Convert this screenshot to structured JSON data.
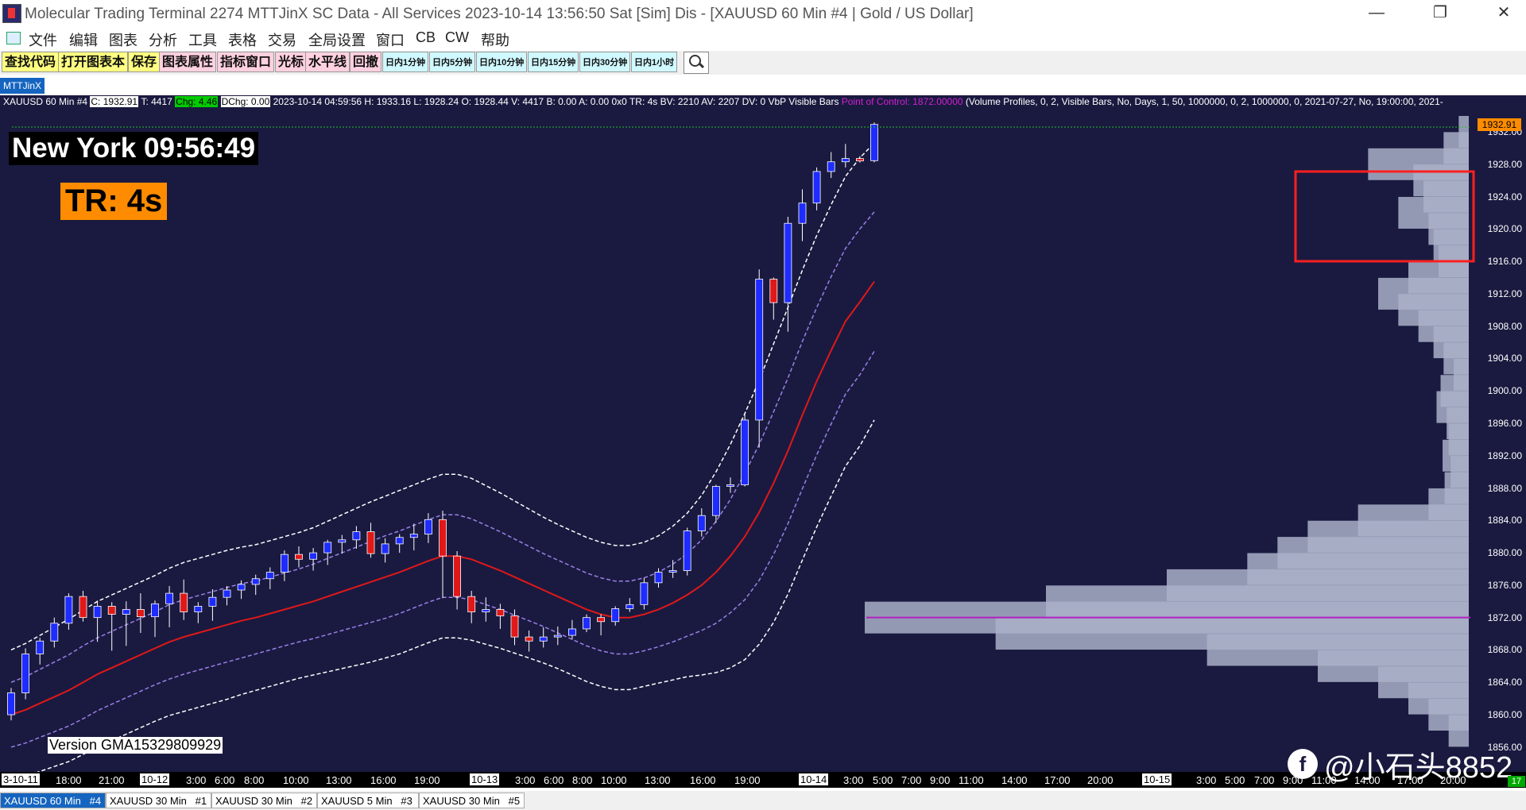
{
  "window": {
    "title": "Molecular Trading Terminal 2274 MTTJinX  SC Data - All Services 2023-10-14  13:56:50 Sat [Sim]  Dis - [XAUUSD  60 Min   #4 | Gold / US Dollar]",
    "minimize": "—",
    "restore": "❐",
    "close": "✕"
  },
  "menu": [
    "文件",
    "编辑",
    "图表",
    "分析",
    "工具",
    "表格",
    "交易",
    "全局设置",
    "窗口",
    "CB",
    "CW",
    "帮助"
  ],
  "mdi_buttons": [
    "–",
    "▫",
    "✕"
  ],
  "toolbar": [
    {
      "label": "查找代码",
      "color": "#ffff80"
    },
    {
      "label": "打开图表本",
      "color": "#ffff80"
    },
    {
      "label": "保存",
      "color": "#ffff80"
    },
    {
      "label": "图表属性",
      "color": "#ffd0e0"
    },
    {
      "label": "指标窗口",
      "color": "#ffd0e0"
    },
    {
      "label": "光标",
      "color": "#ffd0e0"
    },
    {
      "label": "水平线",
      "color": "#ffd0e0"
    },
    {
      "label": "回撤",
      "color": "#ffd0e0"
    }
  ],
  "toolbar_small": [
    "日内1分钟",
    "日内5分钟",
    "日内10分钟",
    "日内15分钟",
    "日内30分钟",
    "日内1小时"
  ],
  "chartset_tab": "MTTJinX",
  "info": {
    "symbol": "XAUUSD  60 Min   #4",
    "close": "C: 1932.91",
    "ticks": "T: 4417",
    "chg": "Chg: 4.46",
    "dchg": "DChg: 0.00",
    "bar": "2023-10-14 04:59:56 H: 1933.16 L: 1928.24 O: 1928.44 V: 4417 B: 0.00 A: 0.00 0x0 TR: 4s BV: 2210 AV: 2207 DV: 0 VbP Visible Bars",
    "poc": "Point of Control: 1872.00000",
    "study": "(Volume Profiles, 0, 2, Visible Bars, No, Days, 1, 50, 1000000, 0, 2, 1000000, 0, 2021-07-27, No, 19:00:00, 2021-"
  },
  "clock": "New York 09:56:49",
  "tr": "TR: 4s",
  "version": "Version GMA15329809929",
  "watermark": "@小石头8852",
  "watermark_icon": "f",
  "colors": {
    "up": "#1e2cff",
    "down": "#e01818",
    "mid": "#e01818",
    "inner": "#9a80e8",
    "outer": "#ffffff",
    "poc": "#b020c0",
    "profile": "#aab0c8",
    "highlight": "#ff2020"
  },
  "time_axis": [
    {
      "label": "3-10-11",
      "box": true
    },
    {
      "label": "18:00"
    },
    {
      "label": "21:00"
    },
    {
      "label": "10-12",
      "box": true
    },
    {
      "label": "3:00"
    },
    {
      "label": "6:00"
    },
    {
      "label": "8:00"
    },
    {
      "label": "10:00"
    },
    {
      "label": "13:00"
    },
    {
      "label": "16:00"
    },
    {
      "label": "19:00"
    },
    {
      "label": "10-13",
      "box": true
    },
    {
      "label": "3:00"
    },
    {
      "label": "6:00"
    },
    {
      "label": "8:00"
    },
    {
      "label": "10:00"
    },
    {
      "label": "13:00"
    },
    {
      "label": "16:00"
    },
    {
      "label": "19:00"
    },
    {
      "label": "10-14",
      "box": true
    },
    {
      "label": "3:00"
    },
    {
      "label": "5:00"
    },
    {
      "label": "7:00"
    },
    {
      "label": "9:00"
    },
    {
      "label": "11:00"
    },
    {
      "label": "14:00"
    },
    {
      "label": "17:00"
    },
    {
      "label": "20:00"
    },
    {
      "label": "10-15",
      "box": true
    },
    {
      "label": "3:00"
    },
    {
      "label": "5:00"
    },
    {
      "label": "7:00"
    },
    {
      "label": "9:00"
    },
    {
      "label": "11:00"
    },
    {
      "label": "14:00"
    },
    {
      "label": "17:00"
    },
    {
      "label": "20:00"
    }
  ],
  "tabs": [
    {
      "label": "XAUUSD  60 Min",
      "num": "#4",
      "active": true
    },
    {
      "label": "XAUUSD  30 Min",
      "num": "#1"
    },
    {
      "label": "XAUUSD  30 Min",
      "num": "#2"
    },
    {
      "label": "XAUUSD  5 Min",
      "num": "#3"
    },
    {
      "label": "XAUUSD  30 Min",
      "num": "#5"
    }
  ],
  "tab_corner": "17",
  "chart_data": {
    "type": "candlestick",
    "symbol": "XAUUSD",
    "interval": "60 Min",
    "ylim": [
      1855,
      1934
    ],
    "y_ticks": [
      1932.0,
      1928.0,
      1924.0,
      1920.0,
      1916.0,
      1912.0,
      1908.0,
      1904.0,
      1900.0,
      1896.0,
      1892.0,
      1888.0,
      1884.0,
      1880.0,
      1876.0,
      1872.0,
      1868.0,
      1864.0,
      1860.0,
      1856.0
    ],
    "y_tick_labels": [
      "1932.00",
      "1928.00",
      "1924.00",
      "1920.00",
      "1916.00",
      "1912.00",
      "1908.00",
      "1904.00",
      "1900.00",
      "1896.00",
      "1892.00",
      "1888.00",
      "1884.00",
      "1880.00",
      "1876.00",
      "1872.00",
      "1868.00",
      "1864.00",
      "1860.00",
      "1856.00"
    ],
    "last_price": "1932.91",
    "point_of_control": 1872.0,
    "ohlc": [
      [
        1860.0,
        1863.3,
        1859.3,
        1862.7
      ],
      [
        1862.7,
        1868.2,
        1861.9,
        1867.5
      ],
      [
        1867.5,
        1869.5,
        1866.2,
        1869.1
      ],
      [
        1869.1,
        1872.0,
        1868.3,
        1871.3
      ],
      [
        1871.3,
        1875.0,
        1870.5,
        1874.6
      ],
      [
        1874.6,
        1875.3,
        1871.5,
        1872.0
      ],
      [
        1872.0,
        1874.1,
        1869.0,
        1873.4
      ],
      [
        1873.4,
        1873.9,
        1867.9,
        1872.4
      ],
      [
        1872.4,
        1874.0,
        1868.5,
        1873.0
      ],
      [
        1873.0,
        1875.0,
        1870.1,
        1872.1
      ],
      [
        1872.1,
        1874.1,
        1869.6,
        1873.7
      ],
      [
        1873.7,
        1875.9,
        1870.8,
        1875.0
      ],
      [
        1875.0,
        1876.7,
        1871.7,
        1872.7
      ],
      [
        1872.7,
        1873.9,
        1871.3,
        1873.4
      ],
      [
        1873.4,
        1875.5,
        1871.6,
        1874.5
      ],
      [
        1874.5,
        1875.9,
        1873.5,
        1875.4
      ],
      [
        1875.4,
        1876.6,
        1874.3,
        1876.1
      ],
      [
        1876.1,
        1877.3,
        1874.8,
        1876.8
      ],
      [
        1876.8,
        1878.2,
        1875.5,
        1877.6
      ],
      [
        1877.6,
        1880.3,
        1876.5,
        1879.8
      ],
      [
        1879.8,
        1880.8,
        1878.2,
        1879.2
      ],
      [
        1879.2,
        1880.6,
        1877.8,
        1880.0
      ],
      [
        1880.0,
        1881.6,
        1878.5,
        1881.3
      ],
      [
        1881.3,
        1882.2,
        1879.9,
        1881.6
      ],
      [
        1881.6,
        1883.3,
        1880.5,
        1882.6
      ],
      [
        1882.6,
        1883.7,
        1879.4,
        1879.9
      ],
      [
        1879.9,
        1881.8,
        1878.8,
        1881.1
      ],
      [
        1881.1,
        1882.3,
        1880.0,
        1881.9
      ],
      [
        1881.9,
        1883.6,
        1880.3,
        1882.3
      ],
      [
        1882.3,
        1884.9,
        1881.2,
        1884.1
      ],
      [
        1884.1,
        1885.2,
        1874.4,
        1879.6
      ],
      [
        1879.6,
        1880.2,
        1873.0,
        1874.6
      ],
      [
        1874.6,
        1875.3,
        1871.3,
        1872.7
      ],
      [
        1872.7,
        1874.5,
        1871.5,
        1873.0
      ],
      [
        1873.0,
        1873.7,
        1870.6,
        1872.2
      ],
      [
        1872.2,
        1873.0,
        1868.6,
        1869.6
      ],
      [
        1869.6,
        1870.4,
        1867.8,
        1869.1
      ],
      [
        1869.1,
        1870.8,
        1868.3,
        1869.6
      ],
      [
        1869.6,
        1870.9,
        1868.6,
        1869.8
      ],
      [
        1869.8,
        1871.7,
        1869.3,
        1870.6
      ],
      [
        1870.6,
        1872.4,
        1870.2,
        1872.0
      ],
      [
        1872.0,
        1872.4,
        1869.8,
        1871.5
      ],
      [
        1871.5,
        1873.4,
        1871.0,
        1873.1
      ],
      [
        1873.1,
        1874.4,
        1872.7,
        1873.6
      ],
      [
        1873.6,
        1876.9,
        1873.0,
        1876.3
      ],
      [
        1876.3,
        1878.1,
        1875.7,
        1877.6
      ],
      [
        1877.6,
        1879.1,
        1876.9,
        1877.8
      ],
      [
        1877.8,
        1883.1,
        1877.2,
        1882.7
      ],
      [
        1882.7,
        1885.5,
        1882.0,
        1884.6
      ],
      [
        1884.6,
        1888.4,
        1883.7,
        1888.2
      ],
      [
        1888.2,
        1889.3,
        1887.4,
        1888.4
      ],
      [
        1888.4,
        1897.3,
        1888.2,
        1896.4
      ],
      [
        1896.4,
        1915.0,
        1893.0,
        1913.8
      ],
      [
        1913.8,
        1914.0,
        1908.8,
        1910.9
      ],
      [
        1910.9,
        1921.5,
        1907.3,
        1920.7
      ],
      [
        1920.7,
        1924.9,
        1918.5,
        1923.2
      ],
      [
        1923.2,
        1927.6,
        1922.3,
        1927.1
      ],
      [
        1927.1,
        1929.5,
        1926.3,
        1928.3
      ],
      [
        1928.3,
        1930.5,
        1927.6,
        1928.7
      ],
      [
        1928.7,
        1929.0,
        1928.2,
        1928.4
      ],
      [
        1928.44,
        1933.16,
        1928.24,
        1932.91
      ]
    ],
    "mid_band": [
      1860.0,
      1860.6,
      1861.4,
      1862.2,
      1863.0,
      1864.0,
      1865.0,
      1865.8,
      1866.6,
      1867.4,
      1868.2,
      1869.0,
      1869.6,
      1870.1,
      1870.6,
      1871.1,
      1871.6,
      1872.0,
      1872.5,
      1873.0,
      1873.5,
      1874.0,
      1874.6,
      1875.2,
      1875.8,
      1876.4,
      1877.0,
      1877.6,
      1878.3,
      1879.0,
      1879.6,
      1879.6,
      1879.2,
      1878.5,
      1877.8,
      1877.0,
      1876.2,
      1875.4,
      1874.6,
      1873.8,
      1873.0,
      1872.4,
      1872.0,
      1872.0,
      1872.4,
      1873.0,
      1873.8,
      1874.8,
      1876.0,
      1877.6,
      1879.6,
      1882.0,
      1885.0,
      1888.6,
      1892.6,
      1897.0,
      1901.2,
      1905.0,
      1908.6,
      1911.0,
      1913.5
    ],
    "inner_band_offset": [
      4.0,
      4.1,
      4.2,
      4.3,
      4.4,
      4.5,
      4.5,
      4.5,
      4.5,
      4.5,
      4.5,
      4.6,
      4.6,
      4.6,
      4.6,
      4.6,
      4.6,
      4.5,
      4.5,
      4.5,
      4.5,
      4.6,
      4.7,
      4.8,
      4.9,
      5.0,
      5.1,
      5.1,
      5.1,
      5.1,
      5.1,
      5.1,
      5.0,
      4.9,
      4.8,
      4.7,
      4.6,
      4.5,
      4.5,
      4.5,
      4.5,
      4.5,
      4.5,
      4.5,
      4.5,
      4.6,
      4.8,
      5.1,
      5.6,
      6.3,
      7.0,
      7.8,
      8.4,
      8.8,
      9.0,
      9.1,
      9.1,
      9.1,
      9.0,
      9.0,
      8.6
    ],
    "outer_band_offset": [
      8.0,
      8.2,
      8.4,
      8.6,
      8.8,
      8.9,
      9.0,
      9.0,
      9.0,
      9.0,
      9.0,
      9.1,
      9.2,
      9.2,
      9.2,
      9.2,
      9.1,
      9.0,
      9.0,
      9.0,
      9.0,
      9.1,
      9.3,
      9.5,
      9.7,
      9.9,
      10.0,
      10.1,
      10.1,
      10.1,
      10.1,
      10.1,
      10.0,
      9.8,
      9.6,
      9.4,
      9.2,
      9.0,
      8.9,
      8.9,
      8.9,
      8.9,
      8.9,
      8.9,
      8.9,
      9.1,
      9.5,
      10.1,
      11.1,
      12.4,
      13.8,
      15.2,
      16.3,
      17.2,
      17.7,
      17.9,
      18.0,
      18.0,
      17.9,
      17.8,
      17.1
    ],
    "volume_profile": {
      "prices": [
        1932,
        1930,
        1928,
        1926,
        1924,
        1922,
        1920,
        1918,
        1916,
        1914,
        1912,
        1910,
        1908,
        1906,
        1904,
        1902,
        1900,
        1898,
        1896,
        1894,
        1892,
        1890,
        1888,
        1886,
        1884,
        1882,
        1880,
        1878,
        1876,
        1874,
        1872,
        1870,
        1868,
        1866,
        1864,
        1862,
        1860,
        1858
      ],
      "volumes": [
        10,
        25,
        100,
        55,
        45,
        70,
        40,
        35,
        30,
        60,
        90,
        70,
        50,
        35,
        25,
        15,
        28,
        32,
        22,
        20,
        26,
        18,
        24,
        40,
        110,
        160,
        190,
        220,
        300,
        420,
        600,
        470,
        260,
        150,
        90,
        60,
        40,
        20
      ]
    }
  }
}
